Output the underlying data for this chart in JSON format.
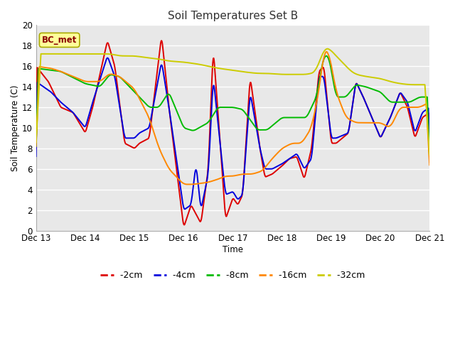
{
  "title": "Soil Temperatures Set B",
  "xlabel": "Time",
  "ylabel": "Soil Temperature (C)",
  "ylim": [
    0,
    20
  ],
  "annotation": "BC_met",
  "plot_bg_color": "#e8e8e8",
  "fig_bg_color": "#ffffff",
  "line_colors": {
    "-2cm": "#dd0000",
    "-4cm": "#0000dd",
    "-8cm": "#00bb00",
    "-16cm": "#ff8800",
    "-32cm": "#cccc00"
  },
  "legend_labels": [
    "-2cm",
    "-4cm",
    "-8cm",
    "-16cm",
    "-32cm"
  ],
  "yticks": [
    0,
    2,
    4,
    6,
    8,
    10,
    12,
    14,
    16,
    18,
    20
  ],
  "xtick_labels": [
    "Dec 13",
    "Dec 14",
    "Dec 15",
    "Dec 16",
    "Dec 17",
    "Dec 18",
    "Dec 19",
    "Dec 20",
    "Dec 21"
  ]
}
